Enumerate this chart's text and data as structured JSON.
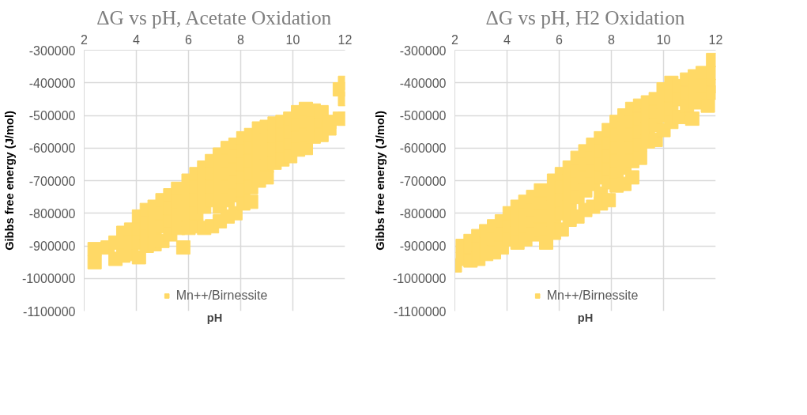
{
  "chart_data": [
    {
      "type": "scatter",
      "title": "ΔG vs pH, Acetate Oxidation",
      "xlabel": "pH",
      "ylabel": "Gibbs free energy (J/mol)",
      "xlim": [
        2,
        12
      ],
      "xticks": [
        2,
        4,
        6,
        8,
        10,
        12
      ],
      "ylim": [
        -1100000,
        -300000
      ],
      "yticks": [
        -1100000,
        -1000000,
        -900000,
        -800000,
        -700000,
        -600000,
        -500000,
        -400000,
        -300000
      ],
      "grid": true,
      "legend": "bottom",
      "marker": "square",
      "series": [
        {
          "name": "Mn++/Birnessite",
          "color": "#ffd966",
          "x": [
            2.4,
            2.4,
            2.9,
            3.2,
            3.2,
            3.5,
            3.5,
            3.5,
            3.8,
            3.8,
            3.8,
            4.1,
            4.1,
            4.1,
            4.1,
            4.4,
            4.4,
            4.4,
            4.4,
            4.7,
            4.7,
            4.7,
            4.7,
            5.0,
            5.0,
            5.0,
            5.0,
            5.3,
            5.3,
            5.3,
            5.3,
            5.6,
            5.6,
            5.6,
            5.6,
            5.8,
            6.0,
            6.0,
            6.0,
            6.0,
            6.0,
            6.3,
            6.3,
            6.3,
            6.3,
            6.3,
            6.6,
            6.6,
            6.6,
            6.6,
            6.6,
            6.9,
            6.9,
            6.9,
            6.9,
            6.9,
            7.2,
            7.2,
            7.2,
            7.2,
            7.2,
            7.2,
            7.5,
            7.5,
            7.5,
            7.5,
            7.5,
            7.5,
            7.8,
            7.8,
            7.8,
            7.8,
            7.8,
            7.8,
            8.1,
            8.1,
            8.1,
            8.1,
            8.1,
            8.1,
            8.4,
            8.4,
            8.4,
            8.4,
            8.4,
            8.4,
            8.7,
            8.7,
            8.7,
            8.7,
            8.7,
            9.0,
            9.0,
            9.0,
            9.0,
            9.0,
            9.3,
            9.3,
            9.3,
            9.3,
            9.6,
            9.6,
            9.6,
            9.6,
            9.9,
            9.9,
            9.9,
            9.9,
            10.2,
            10.2,
            10.2,
            10.2,
            10.5,
            10.5,
            10.5,
            10.5,
            10.8,
            10.8,
            10.8,
            11.1,
            11.1,
            11.1,
            11.4,
            11.4,
            11.8,
            11.8,
            12.0,
            12.0,
            12.0
          ],
          "values": [
            -910000,
            -950000,
            -905000,
            -890000,
            -940000,
            -860000,
            -900000,
            -930000,
            -850000,
            -890000,
            -925000,
            -810000,
            -850000,
            -890000,
            -935000,
            -790000,
            -830000,
            -870000,
            -900000,
            -780000,
            -820000,
            -860000,
            -895000,
            -760000,
            -800000,
            -840000,
            -885000,
            -745000,
            -785000,
            -825000,
            -865000,
            -725000,
            -765000,
            -805000,
            -845000,
            -905000,
            -700000,
            -740000,
            -780000,
            -820000,
            -845000,
            -680000,
            -720000,
            -760000,
            -800000,
            -840000,
            -660000,
            -700000,
            -740000,
            -780000,
            -845000,
            -640000,
            -680000,
            -720000,
            -760000,
            -840000,
            -620000,
            -660000,
            -700000,
            -740000,
            -780000,
            -825000,
            -600000,
            -640000,
            -680000,
            -720000,
            -760000,
            -810000,
            -590000,
            -625000,
            -665000,
            -705000,
            -745000,
            -800000,
            -570000,
            -610000,
            -650000,
            -690000,
            -730000,
            -770000,
            -560000,
            -600000,
            -640000,
            -680000,
            -720000,
            -765000,
            -540000,
            -580000,
            -620000,
            -660000,
            -700000,
            -535000,
            -575000,
            -615000,
            -655000,
            -690000,
            -525000,
            -565000,
            -605000,
            -645000,
            -520000,
            -560000,
            -600000,
            -635000,
            -510000,
            -550000,
            -590000,
            -625000,
            -490000,
            -530000,
            -570000,
            -605000,
            -480000,
            -520000,
            -560000,
            -600000,
            -485000,
            -525000,
            -565000,
            -490000,
            -530000,
            -560000,
            -520000,
            -540000,
            -420000,
            -510000,
            -400000,
            -450000,
            -510000
          ]
        }
      ]
    },
    {
      "type": "scatter",
      "title": "ΔG vs pH, H2 Oxidation",
      "xlabel": "pH",
      "ylabel": "Gibbs free energy (J/mol)",
      "xlim": [
        2,
        12
      ],
      "xticks": [
        2,
        4,
        6,
        8,
        10,
        12
      ],
      "ylim": [
        -1100000,
        -300000
      ],
      "yticks": [
        -1100000,
        -1000000,
        -900000,
        -800000,
        -700000,
        -600000,
        -500000,
        -400000,
        -300000
      ],
      "grid": true,
      "legend": "bottom",
      "marker": "square",
      "series": [
        {
          "name": "Mn++/Birnessite",
          "color": "#ffd966",
          "x": [
            2.0,
            2.3,
            2.3,
            2.6,
            2.6,
            2.6,
            2.9,
            2.9,
            2.9,
            3.2,
            3.2,
            3.2,
            3.5,
            3.5,
            3.5,
            3.8,
            3.8,
            3.8,
            4.1,
            4.1,
            4.1,
            4.4,
            4.4,
            4.4,
            4.4,
            4.7,
            4.7,
            4.7,
            4.7,
            5.0,
            5.0,
            5.0,
            5.0,
            5.3,
            5.3,
            5.3,
            5.3,
            5.5,
            5.8,
            5.8,
            5.8,
            5.8,
            5.8,
            6.1,
            6.1,
            6.1,
            6.1,
            6.1,
            6.4,
            6.4,
            6.4,
            6.4,
            6.4,
            6.7,
            6.7,
            6.7,
            6.7,
            6.7,
            7.0,
            7.0,
            7.0,
            7.0,
            7.0,
            7.3,
            7.3,
            7.3,
            7.3,
            7.3,
            7.6,
            7.6,
            7.6,
            7.6,
            7.6,
            7.6,
            7.9,
            7.9,
            7.9,
            7.9,
            7.9,
            7.9,
            8.2,
            8.2,
            8.2,
            8.2,
            8.2,
            8.2,
            8.5,
            8.5,
            8.5,
            8.5,
            8.5,
            8.5,
            8.8,
            8.8,
            8.8,
            8.8,
            8.8,
            8.8,
            9.1,
            9.1,
            9.1,
            9.1,
            9.1,
            9.4,
            9.4,
            9.4,
            9.4,
            9.7,
            9.7,
            9.7,
            9.7,
            10.0,
            10.0,
            10.0,
            10.0,
            10.3,
            10.3,
            10.3,
            10.3,
            10.6,
            10.6,
            10.6,
            10.9,
            10.9,
            10.9,
            11.1,
            11.2,
            11.2,
            11.2,
            11.5,
            11.5,
            11.5,
            11.7,
            11.9,
            11.9,
            11.9,
            11.9
          ],
          "values": [
            -960000,
            -900000,
            -940000,
            -885000,
            -925000,
            -945000,
            -870000,
            -910000,
            -940000,
            -855000,
            -895000,
            -925000,
            -840000,
            -880000,
            -920000,
            -825000,
            -865000,
            -905000,
            -800000,
            -840000,
            -880000,
            -780000,
            -820000,
            -860000,
            -890000,
            -765000,
            -805000,
            -845000,
            -880000,
            -750000,
            -790000,
            -830000,
            -865000,
            -730000,
            -770000,
            -810000,
            -850000,
            -890000,
            -700000,
            -740000,
            -780000,
            -820000,
            -860000,
            -680000,
            -720000,
            -760000,
            -800000,
            -850000,
            -660000,
            -700000,
            -740000,
            -780000,
            -820000,
            -630000,
            -670000,
            -710000,
            -750000,
            -810000,
            -610000,
            -650000,
            -690000,
            -730000,
            -790000,
            -590000,
            -630000,
            -670000,
            -710000,
            -780000,
            -570000,
            -610000,
            -650000,
            -690000,
            -740000,
            -770000,
            -545000,
            -585000,
            -625000,
            -665000,
            -705000,
            -760000,
            -520000,
            -560000,
            -600000,
            -640000,
            -680000,
            -715000,
            -500000,
            -540000,
            -580000,
            -620000,
            -660000,
            -710000,
            -480000,
            -520000,
            -560000,
            -600000,
            -640000,
            -690000,
            -470000,
            -510000,
            -550000,
            -590000,
            -630000,
            -460000,
            -500000,
            -540000,
            -580000,
            -450000,
            -490000,
            -530000,
            -575000,
            -420000,
            -460000,
            -500000,
            -545000,
            -400000,
            -440000,
            -480000,
            -520000,
            -410000,
            -450000,
            -505000,
            -390000,
            -430000,
            -470000,
            -510000,
            -380000,
            -420000,
            -460000,
            -370000,
            -410000,
            -450000,
            -470000,
            -330000,
            -370000,
            -410000,
            -430000
          ]
        }
      ]
    }
  ]
}
